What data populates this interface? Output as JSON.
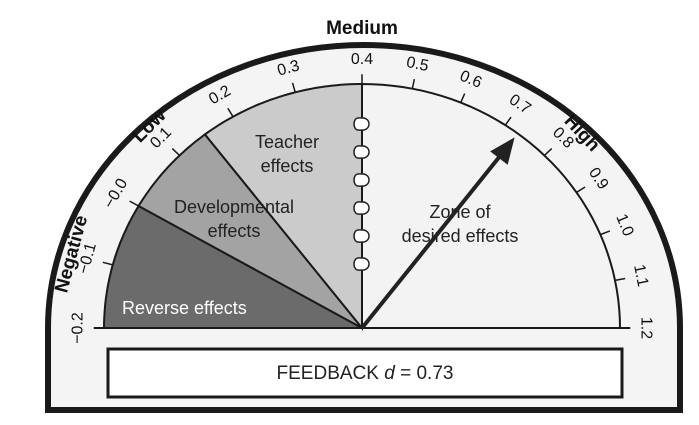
{
  "chart_data": {
    "type": "gauge",
    "ylim": [
      -0.2,
      1.2
    ],
    "yticks": [
      {
        "value": -0.2,
        "label": "−0.2"
      },
      {
        "value": -0.1,
        "label": "−0.1"
      },
      {
        "value": 0,
        "label": "−0.0"
      },
      0.1,
      0.2,
      0.3,
      0.4,
      0.5,
      0.6,
      0.7,
      0.8,
      0.9,
      {
        "value": 1,
        "label": "1.0"
      },
      1.1,
      1.2
    ],
    "bands": [
      "Negative",
      "Low",
      "Medium",
      "High"
    ],
    "zones": [
      {
        "name": [
          "Reverse effects"
        ],
        "from": -0.2,
        "to": 0,
        "color": "#6b6b6b",
        "text_color": "#ffffff"
      },
      {
        "name": [
          "Developmental",
          "effects"
        ],
        "from": 0,
        "to": 0.15,
        "color": "#a3a3a3",
        "text_color": "#222222"
      },
      {
        "name": [
          "Teacher",
          "effects"
        ],
        "from": 0.15,
        "to": 0.4,
        "color": "#cbcbcb",
        "text_color": "#222222"
      },
      {
        "name": [
          "Zone of",
          "desired effects"
        ],
        "from": 0.4,
        "to": 1.2,
        "color": "#f3f3f3",
        "text_color": "#222222"
      }
    ],
    "needle": {
      "name": "FEEDBACK",
      "symbol": "d",
      "operator": "=",
      "value": 0.73,
      "color": "#222222"
    }
  }
}
